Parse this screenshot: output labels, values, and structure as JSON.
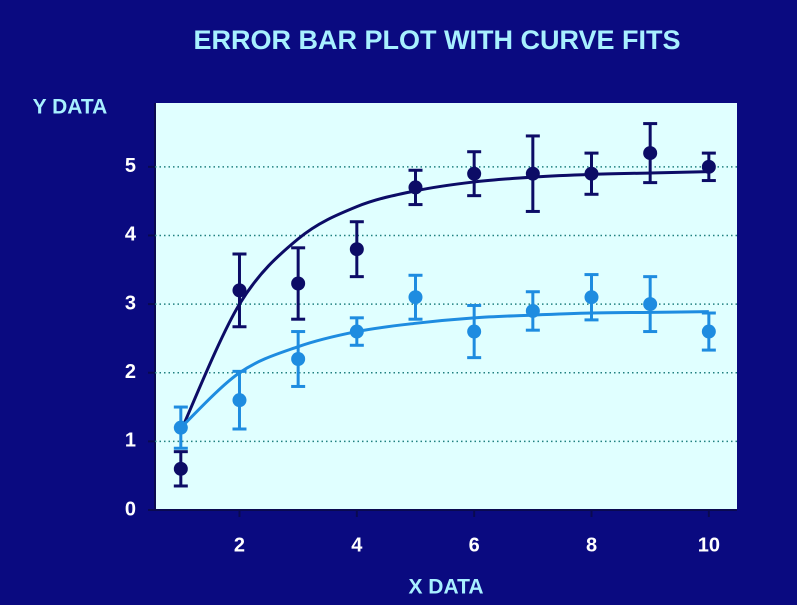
{
  "chart_data": {
    "type": "errorbar",
    "title": "ERROR BAR PLOT WITH CURVE FITS",
    "x_label": "X DATA",
    "y_label": "Y DATA",
    "xlim": [
      0.56,
      10.48
    ],
    "ylim": [
      0,
      5.93
    ],
    "xticks": [
      2,
      4,
      6,
      8,
      10
    ],
    "yticks": [
      0,
      1,
      2,
      3,
      4,
      5
    ],
    "grid": true,
    "series": [
      {
        "color": "#0c0c66",
        "x": [
          1,
          2,
          3,
          4,
          5,
          6,
          7,
          8,
          9,
          10
        ],
        "values": [
          0.6,
          3.2,
          3.3,
          3.8,
          4.7,
          4.9,
          4.9,
          4.9,
          5.2,
          5.0
        ],
        "errors": [
          0.25,
          0.53,
          0.52,
          0.4,
          0.25,
          0.32,
          0.55,
          0.3,
          0.43,
          0.2
        ],
        "fit": [
          1.15,
          3.0,
          3.95,
          4.42,
          4.65,
          4.78,
          4.85,
          4.89,
          4.91,
          4.93
        ]
      },
      {
        "color": "#1e8ce0",
        "x": [
          1,
          2,
          3,
          4,
          5,
          6,
          7,
          8,
          9,
          10
        ],
        "values": [
          1.2,
          1.6,
          2.2,
          2.6,
          3.1,
          2.6,
          2.9,
          3.1,
          3.0,
          2.6
        ],
        "errors": [
          0.3,
          0.42,
          0.4,
          0.2,
          0.32,
          0.38,
          0.28,
          0.33,
          0.4,
          0.27
        ],
        "fit": [
          1.2,
          2.0,
          2.38,
          2.6,
          2.72,
          2.8,
          2.84,
          2.87,
          2.88,
          2.89
        ]
      }
    ]
  }
}
